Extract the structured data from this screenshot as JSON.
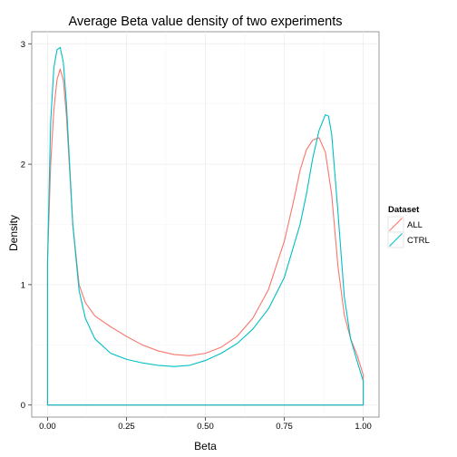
{
  "chart_data": {
    "type": "line",
    "title": "Average Beta value density of two experiments",
    "xlabel": "Beta",
    "ylabel": "Density",
    "xlim": [
      -0.05,
      1.05
    ],
    "ylim": [
      -0.1,
      3.1
    ],
    "x_ticks": [
      0,
      0.25,
      0.5,
      0.75,
      1
    ],
    "x_tick_labels": [
      "0.00",
      "0.25",
      "0.50",
      "0.75",
      "1.00"
    ],
    "y_ticks": [
      0,
      1,
      2,
      3
    ],
    "y_tick_labels": [
      "0",
      "1",
      "2",
      "3"
    ],
    "grid": true,
    "legend": {
      "title": "Dataset",
      "position": "right"
    },
    "series": [
      {
        "name": "ALL",
        "color": "#F8766D",
        "x": [
          0.0,
          0.0,
          0.005,
          0.01,
          0.02,
          0.03,
          0.04,
          0.05,
          0.06,
          0.07,
          0.08,
          0.1,
          0.12,
          0.15,
          0.2,
          0.25,
          0.3,
          0.35,
          0.4,
          0.45,
          0.5,
          0.55,
          0.6,
          0.65,
          0.7,
          0.75,
          0.78,
          0.8,
          0.82,
          0.84,
          0.86,
          0.88,
          0.9,
          0.92,
          0.94,
          0.96,
          0.98,
          1.0,
          1.0,
          0.0
        ],
        "y": [
          0.0,
          1.2,
          1.6,
          2.0,
          2.45,
          2.7,
          2.79,
          2.7,
          2.4,
          1.95,
          1.5,
          1.0,
          0.85,
          0.74,
          0.65,
          0.57,
          0.5,
          0.45,
          0.42,
          0.41,
          0.43,
          0.48,
          0.57,
          0.72,
          0.96,
          1.36,
          1.7,
          1.95,
          2.12,
          2.2,
          2.22,
          2.1,
          1.75,
          1.15,
          0.75,
          0.55,
          0.42,
          0.25,
          0.0,
          0.0
        ]
      },
      {
        "name": "CTRL",
        "color": "#00BFC4",
        "x": [
          0.0,
          0.0,
          0.005,
          0.01,
          0.02,
          0.03,
          0.04,
          0.05,
          0.06,
          0.07,
          0.08,
          0.1,
          0.12,
          0.15,
          0.2,
          0.25,
          0.3,
          0.35,
          0.4,
          0.45,
          0.5,
          0.55,
          0.6,
          0.65,
          0.7,
          0.75,
          0.8,
          0.82,
          0.84,
          0.86,
          0.88,
          0.89,
          0.9,
          0.92,
          0.94,
          0.96,
          0.98,
          1.0,
          1.0,
          0.0
        ],
        "y": [
          0.0,
          1.15,
          1.8,
          2.35,
          2.8,
          2.95,
          2.97,
          2.85,
          2.5,
          2.0,
          1.5,
          0.95,
          0.72,
          0.55,
          0.43,
          0.38,
          0.35,
          0.33,
          0.32,
          0.33,
          0.37,
          0.43,
          0.51,
          0.63,
          0.8,
          1.06,
          1.5,
          1.75,
          2.05,
          2.28,
          2.41,
          2.4,
          2.25,
          1.6,
          0.9,
          0.55,
          0.37,
          0.2,
          0.0,
          0.0
        ]
      }
    ]
  }
}
